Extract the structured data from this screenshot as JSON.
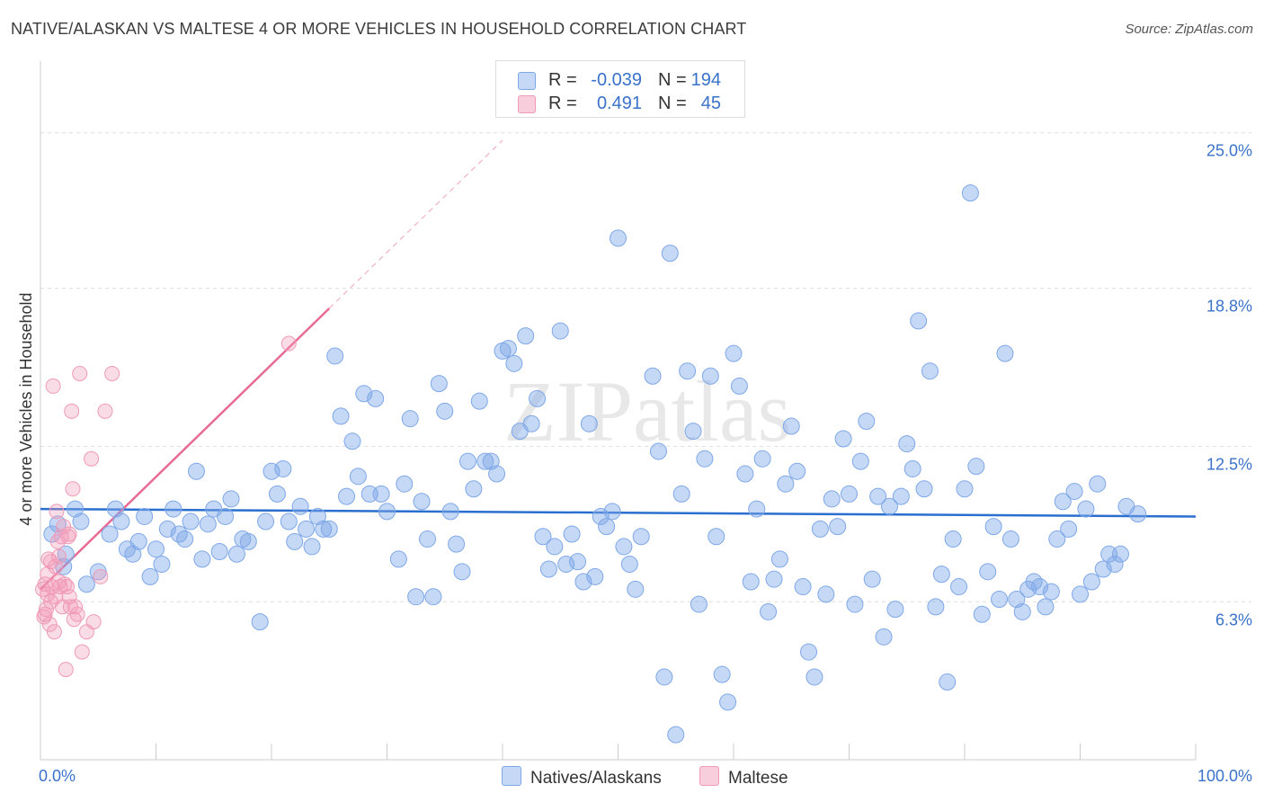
{
  "header": {
    "title": "NATIVE/ALASKAN VS MALTESE 4 OR MORE VEHICLES IN HOUSEHOLD CORRELATION CHART",
    "source": "Source: ZipAtlas.com"
  },
  "watermark": "ZIPatlas",
  "legend": {
    "rows": [
      {
        "r_label": "R =",
        "r_value": "-0.039",
        "n_label": "N =",
        "n_value": "194",
        "color": "#7fa8e8"
      },
      {
        "r_label": "R =",
        "r_value": "0.491",
        "n_label": "N =",
        "n_value": "45",
        "color": "#f09ab8"
      }
    ]
  },
  "bottom_legend": {
    "natives": "Natives/Alaskans",
    "maltese": "Maltese"
  },
  "chart_data": {
    "type": "scatter",
    "xlabel": "",
    "ylabel": "4 or more Vehicles in Household",
    "xlim": [
      0,
      100
    ],
    "ylim": [
      0,
      27.5
    ],
    "x_tick_labels": [
      "0.0%",
      "100.0%"
    ],
    "y_tick_labels": [
      "6.3%",
      "12.5%",
      "18.8%",
      "25.0%"
    ],
    "y_ticks": [
      6.3,
      12.5,
      18.8,
      25.0
    ],
    "grid": true,
    "colors": {
      "natives": "#7fa8e8",
      "maltese": "#f09ab8",
      "natives_line": "#2a6fcf",
      "maltese_line": "#e86b95"
    },
    "series": [
      {
        "name": "Natives/Alaskans",
        "r": -0.039,
        "n": 194,
        "trend": {
          "x": [
            0,
            100
          ],
          "y": [
            10.0,
            9.7
          ]
        },
        "points": [
          [
            1,
            9.0
          ],
          [
            1.5,
            9.4
          ],
          [
            2,
            7.7
          ],
          [
            2.2,
            8.2
          ],
          [
            3,
            10.0
          ],
          [
            3.5,
            9.5
          ],
          [
            4,
            7.0
          ],
          [
            5,
            7.5
          ],
          [
            6,
            9.0
          ],
          [
            6.5,
            10.0
          ],
          [
            7,
            9.5
          ],
          [
            7.5,
            8.4
          ],
          [
            8,
            8.2
          ],
          [
            8.5,
            8.7
          ],
          [
            9,
            9.7
          ],
          [
            9.5,
            7.3
          ],
          [
            10,
            8.4
          ],
          [
            10.5,
            7.8
          ],
          [
            11,
            9.2
          ],
          [
            11.5,
            10.0
          ],
          [
            12,
            9.0
          ],
          [
            12.5,
            8.8
          ],
          [
            13,
            9.5
          ],
          [
            13.5,
            11.5
          ],
          [
            14,
            8.0
          ],
          [
            14.5,
            9.4
          ],
          [
            15,
            10.0
          ],
          [
            15.5,
            8.3
          ],
          [
            16,
            9.7
          ],
          [
            16.5,
            10.4
          ],
          [
            17,
            8.2
          ],
          [
            17.5,
            8.8
          ],
          [
            18,
            8.7
          ],
          [
            19,
            5.5
          ],
          [
            19.5,
            9.5
          ],
          [
            20,
            11.5
          ],
          [
            20.5,
            10.6
          ],
          [
            21,
            11.6
          ],
          [
            21.5,
            9.5
          ],
          [
            22,
            8.7
          ],
          [
            22.5,
            10.1
          ],
          [
            23,
            9.2
          ],
          [
            23.5,
            8.5
          ],
          [
            24,
            9.7
          ],
          [
            24.5,
            9.2
          ],
          [
            25,
            9.2
          ],
          [
            25.5,
            16.1
          ],
          [
            26,
            13.7
          ],
          [
            26.5,
            10.5
          ],
          [
            27,
            12.7
          ],
          [
            27.5,
            11.3
          ],
          [
            28,
            14.6
          ],
          [
            28.5,
            10.6
          ],
          [
            29,
            14.4
          ],
          [
            29.5,
            10.6
          ],
          [
            30,
            9.9
          ],
          [
            31,
            8.0
          ],
          [
            31.5,
            11.0
          ],
          [
            32,
            13.6
          ],
          [
            32.5,
            6.5
          ],
          [
            33,
            10.3
          ],
          [
            33.5,
            8.8
          ],
          [
            34,
            6.5
          ],
          [
            34.5,
            15.0
          ],
          [
            35,
            13.9
          ],
          [
            35.5,
            9.9
          ],
          [
            36,
            8.6
          ],
          [
            36.5,
            7.5
          ],
          [
            37,
            11.9
          ],
          [
            37.5,
            10.8
          ],
          [
            38,
            14.3
          ],
          [
            38.5,
            11.9
          ],
          [
            39,
            11.9
          ],
          [
            39.5,
            11.4
          ],
          [
            40,
            16.3
          ],
          [
            40.5,
            16.4
          ],
          [
            41,
            15.8
          ],
          [
            41.5,
            13.1
          ],
          [
            42,
            16.9
          ],
          [
            42.5,
            13.4
          ],
          [
            43,
            14.4
          ],
          [
            43.5,
            8.9
          ],
          [
            44,
            7.6
          ],
          [
            44.5,
            8.5
          ],
          [
            45,
            17.1
          ],
          [
            45.5,
            7.8
          ],
          [
            46,
            9.0
          ],
          [
            46.5,
            7.9
          ],
          [
            47,
            7.1
          ],
          [
            47.5,
            13.4
          ],
          [
            48,
            7.3
          ],
          [
            48.5,
            9.7
          ],
          [
            49,
            9.3
          ],
          [
            49.5,
            9.9
          ],
          [
            50,
            20.8
          ],
          [
            50.5,
            8.5
          ],
          [
            51,
            7.8
          ],
          [
            51.5,
            6.8
          ],
          [
            52,
            8.9
          ],
          [
            53,
            15.3
          ],
          [
            53.5,
            12.3
          ],
          [
            54,
            3.3
          ],
          [
            54.5,
            20.2
          ],
          [
            55,
            1.0
          ],
          [
            55.5,
            10.6
          ],
          [
            56,
            15.5
          ],
          [
            56.5,
            13.1
          ],
          [
            57,
            6.2
          ],
          [
            57.5,
            12.0
          ],
          [
            58,
            15.3
          ],
          [
            58.5,
            8.9
          ],
          [
            59,
            3.4
          ],
          [
            59.5,
            2.3
          ],
          [
            60,
            16.2
          ],
          [
            60.5,
            14.9
          ],
          [
            61,
            11.4
          ],
          [
            61.5,
            7.1
          ],
          [
            62,
            10.0
          ],
          [
            62.5,
            12.0
          ],
          [
            63,
            5.9
          ],
          [
            63.5,
            7.2
          ],
          [
            64,
            8.0
          ],
          [
            64.5,
            11.0
          ],
          [
            65,
            13.3
          ],
          [
            65.5,
            11.5
          ],
          [
            66,
            6.9
          ],
          [
            66.5,
            4.3
          ],
          [
            67,
            3.3
          ],
          [
            67.5,
            9.2
          ],
          [
            68,
            6.6
          ],
          [
            68.5,
            10.4
          ],
          [
            69,
            9.3
          ],
          [
            69.5,
            12.8
          ],
          [
            70,
            10.6
          ],
          [
            70.5,
            6.2
          ],
          [
            71,
            11.9
          ],
          [
            71.5,
            13.5
          ],
          [
            72,
            7.2
          ],
          [
            72.5,
            10.5
          ],
          [
            73,
            4.9
          ],
          [
            73.5,
            10.1
          ],
          [
            74,
            6.0
          ],
          [
            74.5,
            10.5
          ],
          [
            75,
            12.6
          ],
          [
            75.5,
            11.6
          ],
          [
            76,
            17.5
          ],
          [
            76.5,
            10.8
          ],
          [
            77,
            15.5
          ],
          [
            77.5,
            6.1
          ],
          [
            78,
            7.4
          ],
          [
            78.5,
            3.1
          ],
          [
            79,
            8.8
          ],
          [
            79.5,
            6.9
          ],
          [
            80,
            10.8
          ],
          [
            80.5,
            22.6
          ],
          [
            81,
            11.7
          ],
          [
            81.5,
            5.8
          ],
          [
            82,
            7.5
          ],
          [
            82.5,
            9.3
          ],
          [
            83,
            6.4
          ],
          [
            83.5,
            16.2
          ],
          [
            84,
            8.8
          ],
          [
            84.5,
            6.4
          ],
          [
            85,
            5.9
          ],
          [
            85.5,
            6.8
          ],
          [
            86,
            7.1
          ],
          [
            86.5,
            6.9
          ],
          [
            87,
            6.1
          ],
          [
            87.5,
            6.7
          ],
          [
            88,
            8.8
          ],
          [
            88.5,
            10.3
          ],
          [
            89,
            9.2
          ],
          [
            89.5,
            10.7
          ],
          [
            90,
            6.6
          ],
          [
            90.5,
            10.0
          ],
          [
            91,
            7.1
          ],
          [
            91.5,
            11.0
          ],
          [
            92,
            7.6
          ],
          [
            92.5,
            8.2
          ],
          [
            93,
            7.8
          ],
          [
            93.5,
            8.2
          ],
          [
            94,
            10.1
          ],
          [
            95,
            9.8
          ]
        ]
      },
      {
        "name": "Maltese",
        "r": 0.491,
        "n": 45,
        "trend": {
          "x": [
            0,
            25
          ],
          "y": [
            6.8,
            18.0
          ]
        },
        "trend_ext": {
          "x": [
            25,
            40
          ],
          "y": [
            18.0,
            24.7
          ]
        },
        "points": [
          [
            0.2,
            6.8
          ],
          [
            0.3,
            5.7
          ],
          [
            0.4,
            7.0
          ],
          [
            0.5,
            6.0
          ],
          [
            0.6,
            7.4
          ],
          [
            0.7,
            8.0
          ],
          [
            0.8,
            5.4
          ],
          [
            0.9,
            6.3
          ],
          [
            1.0,
            6.9
          ],
          [
            1.1,
            14.9
          ],
          [
            1.2,
            5.1
          ],
          [
            1.3,
            7.7
          ],
          [
            1.4,
            9.9
          ],
          [
            1.5,
            8.7
          ],
          [
            1.6,
            8.1
          ],
          [
            1.7,
            6.9
          ],
          [
            1.8,
            8.9
          ],
          [
            1.9,
            6.1
          ],
          [
            2.0,
            9.3
          ],
          [
            2.1,
            7.0
          ],
          [
            2.2,
            3.6
          ],
          [
            2.3,
            6.9
          ],
          [
            2.4,
            8.9
          ],
          [
            2.5,
            6.5
          ],
          [
            2.6,
            6.1
          ],
          [
            2.7,
            13.9
          ],
          [
            2.8,
            10.8
          ],
          [
            2.9,
            5.6
          ],
          [
            3.0,
            6.1
          ],
          [
            3.2,
            5.8
          ],
          [
            3.4,
            15.4
          ],
          [
            3.6,
            4.3
          ],
          [
            4.0,
            5.1
          ],
          [
            4.4,
            12.0
          ],
          [
            4.6,
            5.5
          ],
          [
            5.2,
            7.3
          ],
          [
            5.6,
            13.9
          ],
          [
            6.2,
            15.4
          ],
          [
            21.5,
            16.6
          ],
          [
            0.6,
            6.6
          ],
          [
            1.6,
            7.1
          ],
          [
            2.5,
            9.0
          ],
          [
            0.9,
            7.9
          ],
          [
            1.3,
            6.5
          ],
          [
            0.4,
            5.8
          ]
        ]
      }
    ]
  }
}
